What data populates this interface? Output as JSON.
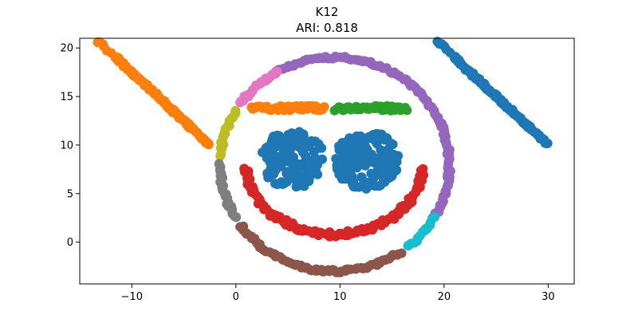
{
  "chart_data": {
    "type": "scatter",
    "title": "K12",
    "subtitle": "ARI: 0.818",
    "xlabel": "",
    "ylabel": "",
    "xlim": [
      -15,
      32.5
    ],
    "ylim": [
      -4.3,
      21
    ],
    "xticks": [
      -10,
      0,
      10,
      20,
      30
    ],
    "yticks": [
      0,
      5,
      10,
      15,
      20
    ],
    "xtick_labels": [
      "−10",
      "0",
      "10",
      "20",
      "30"
    ],
    "ytick_labels": [
      "0",
      "5",
      "10",
      "15",
      "20"
    ],
    "grid": false,
    "legend": "none",
    "clusters": [
      {
        "color": "#ff7f0e",
        "shape": "left-spiral",
        "center": [
          -7.5,
          15
        ],
        "x_range": [
          -13,
          -2
        ],
        "y_range": [
          10,
          19.5
        ]
      },
      {
        "color": "#1f77b4",
        "shape": "right-spiral",
        "center": [
          25,
          15
        ],
        "x_range": [
          19,
          30.5
        ],
        "y_range": [
          10,
          19.5
        ]
      },
      {
        "color": "#1f77b4",
        "shape": "eye-blobs",
        "centers": [
          [
            5.5,
            8.5
          ],
          [
            12.5,
            8.5
          ]
        ],
        "x_range": [
          2.5,
          16
        ],
        "y_range": [
          5,
          12
        ]
      },
      {
        "color": "#ff7f0e",
        "shape": "left-eyebrow",
        "x_range": [
          1.5,
          8.5
        ],
        "y": 13.8
      },
      {
        "color": "#2ca02c",
        "shape": "right-eyebrow",
        "x_range": [
          9.5,
          16.5
        ],
        "y": 13.8
      },
      {
        "color": "#d62728",
        "shape": "smile",
        "center": [
          9.5,
          8
        ],
        "radius": 7,
        "x_range": [
          0.5,
          17.5
        ],
        "y_range": [
          0.5,
          8.5
        ]
      },
      {
        "color": "#9467bd",
        "shape": "ring-arc-top-right",
        "x_range": [
          2,
          19.5
        ],
        "y_range": [
          4.5,
          19
        ]
      },
      {
        "color": "#e377c2",
        "shape": "ring-arc-upper-left",
        "x_range": [
          -1.5,
          2
        ],
        "y_range": [
          12,
          17
        ]
      },
      {
        "color": "#bcbd22",
        "shape": "ring-arc-left",
        "x_range": [
          -2.5,
          -1.5
        ],
        "y_range": [
          8.5,
          12
        ]
      },
      {
        "color": "#7f7f7f",
        "shape": "ring-arc-lower-left",
        "x_range": [
          -2.5,
          -0.5
        ],
        "y_range": [
          3,
          7.5
        ]
      },
      {
        "color": "#8c564b",
        "shape": "ring-arc-bottom",
        "x_range": [
          -1,
          17
        ],
        "y_range": [
          -3,
          2.5
        ]
      },
      {
        "color": "#17becf",
        "shape": "ring-arc-lower-right",
        "x_range": [
          17,
          19
        ],
        "y_range": [
          0.5,
          3.5
        ]
      }
    ]
  }
}
